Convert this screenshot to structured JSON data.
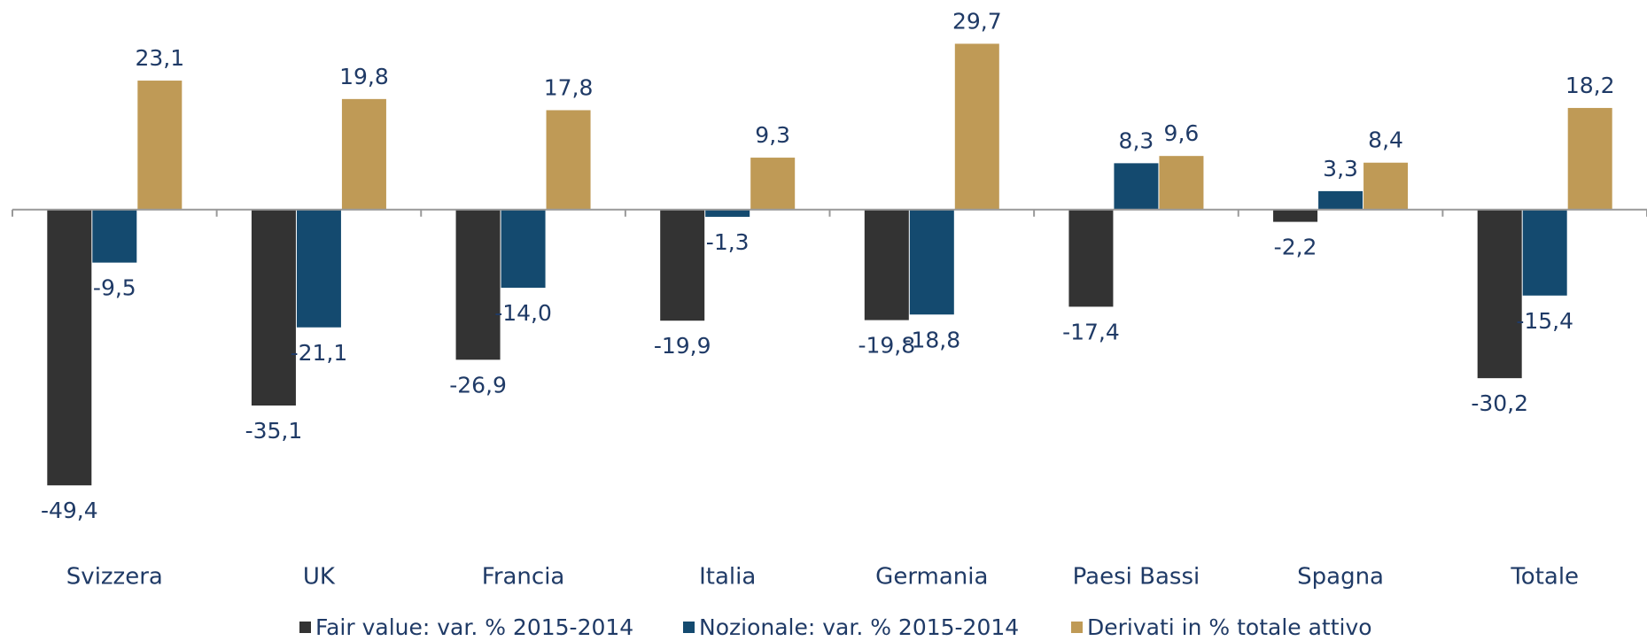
{
  "chart_data": {
    "type": "bar",
    "categories": [
      "Svizzera",
      "UK",
      "Francia",
      "Italia",
      "Germania",
      "Paesi Bassi",
      "Spagna",
      "Totale"
    ],
    "series": [
      {
        "name": "Fair value: var. % 2015-2014",
        "color": "#333333",
        "values": [
          -49.4,
          -35.1,
          -26.9,
          -19.9,
          -19.8,
          -17.4,
          -2.2,
          -30.2
        ],
        "value_labels": [
          "-49,4",
          "-35,1",
          "-26,9",
          "-19,9",
          "-19,8",
          "-17,4",
          "-2,2",
          "-30,2"
        ]
      },
      {
        "name": "Nozionale: var. % 2015-2014",
        "color": "#144a6f",
        "values": [
          -9.5,
          -21.1,
          -14.0,
          -1.3,
          -18.8,
          8.3,
          3.3,
          -15.4
        ],
        "value_labels": [
          "-9,5",
          "-21,1",
          "-14,0",
          "-1,3",
          "-18,8",
          "8,3",
          "3,3",
          "-15,4"
        ]
      },
      {
        "name": "Derivati in % totale attivo",
        "color": "#bf9a56",
        "values": [
          23.1,
          19.8,
          17.8,
          9.3,
          29.7,
          9.6,
          8.4,
          18.2
        ],
        "value_labels": [
          "23,1",
          "19,8",
          "17,8",
          "9,3",
          "29,7",
          "9,6",
          "8,4",
          "18,2"
        ]
      }
    ],
    "ylim": [
      -50,
      35
    ],
    "legend": "bottom"
  }
}
